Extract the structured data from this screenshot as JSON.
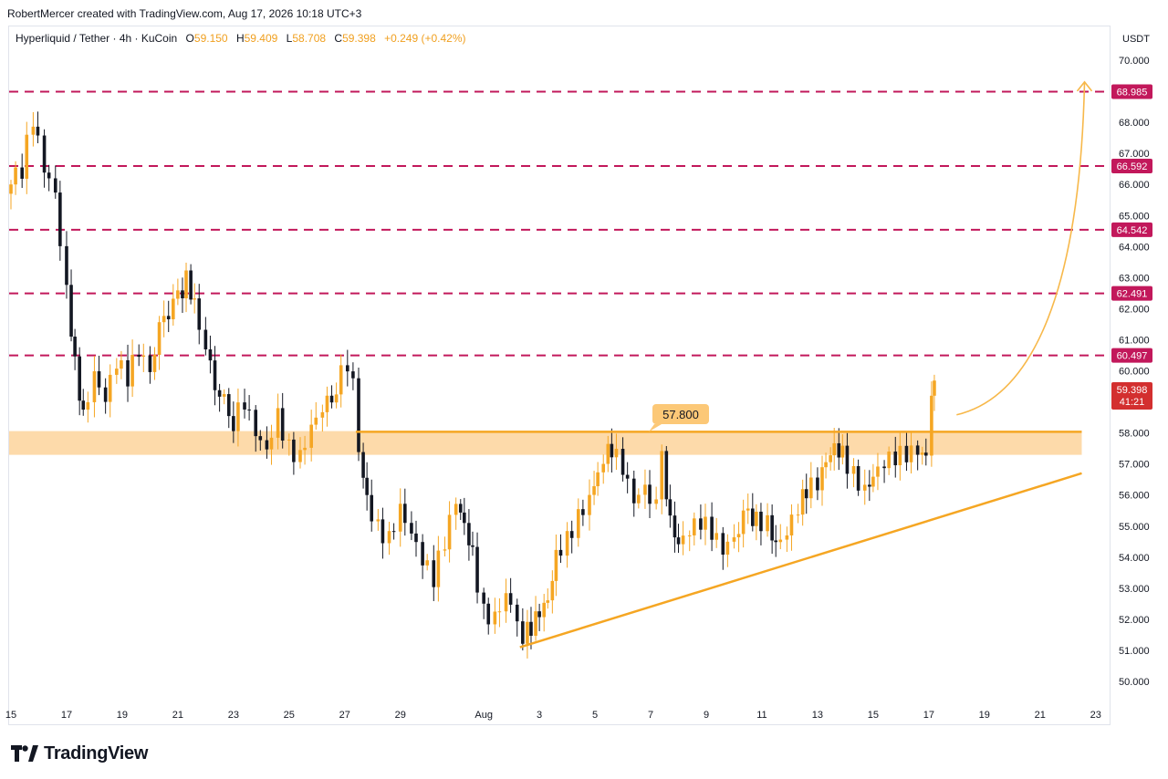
{
  "header": {
    "credit": "RobertMercer created with TradingView.com, Aug 17, 2026 10:18 UTC+3"
  },
  "legend": {
    "symbol": "Hyperliquid / Tether · 4h · KuCoin",
    "o_label": "O",
    "o_value": "59.150",
    "h_label": "H",
    "h_value": "59.409",
    "l_label": "L",
    "l_value": "58.708",
    "c_label": "C",
    "c_value": "59.398",
    "change": "+0.249 (+0.42%)"
  },
  "currency": "USDT",
  "brand": {
    "name": "TradingView"
  },
  "colors": {
    "up": "#f5a623",
    "down": "#131722",
    "resistance": "#c2185b",
    "zone": "#fdd49b",
    "trendline": "#f5a623",
    "axis_text": "#131722"
  },
  "chart_data": {
    "type": "candlestick",
    "title": "Hyperliquid / Tether · 4h · KuCoin",
    "y_axis": {
      "range": [
        49.5,
        70.8
      ],
      "ticks": [
        "50.000",
        "51.000",
        "52.000",
        "53.000",
        "54.000",
        "55.000",
        "56.000",
        "57.000",
        "58.000",
        "59.000",
        "60.000",
        "61.000",
        "62.000",
        "63.000",
        "64.000",
        "65.000",
        "66.000",
        "67.000",
        "68.000",
        "69.000",
        "70.000"
      ]
    },
    "x_axis": {
      "ticks": [
        {
          "label": "15",
          "day": 15
        },
        {
          "label": "17",
          "day": 17
        },
        {
          "label": "19",
          "day": 19
        },
        {
          "label": "21",
          "day": 21
        },
        {
          "label": "23",
          "day": 23
        },
        {
          "label": "25",
          "day": 25
        },
        {
          "label": "27",
          "day": 27
        },
        {
          "label": "29",
          "day": 29
        },
        {
          "label": "Aug",
          "day": 32
        },
        {
          "label": "3",
          "day": 34
        },
        {
          "label": "5",
          "day": 36
        },
        {
          "label": "7",
          "day": 38
        },
        {
          "label": "9",
          "day": 40
        },
        {
          "label": "11",
          "day": 42
        },
        {
          "label": "13",
          "day": 44
        },
        {
          "label": "15",
          "day": 46
        },
        {
          "label": "17",
          "day": 48
        },
        {
          "label": "19",
          "day": 50
        },
        {
          "label": "21",
          "day": 52
        },
        {
          "label": "23",
          "day": 54
        }
      ]
    },
    "resistance_levels": [
      {
        "value": 68.985,
        "label": "68.985"
      },
      {
        "value": 66.592,
        "label": "66.592"
      },
      {
        "value": 64.542,
        "label": "64.542"
      },
      {
        "value": 62.491,
        "label": "62.491"
      },
      {
        "value": 60.497,
        "label": "60.497"
      }
    ],
    "support_zone": {
      "from": 57.5,
      "to": 58.0,
      "start_day": 15,
      "end_day": 53.5
    },
    "breakout_level": {
      "value": 57.8,
      "label": "57.800",
      "start_day": 27.4,
      "end_day": 53.5
    },
    "trendline": {
      "start": {
        "day": 33.3,
        "value": 51.1
      },
      "end": {
        "day": 53.5,
        "value": 56.7
      }
    },
    "projection": {
      "start": {
        "day": 49.0,
        "value": 58.7
      },
      "end": {
        "day": 53.6,
        "value": 69.3
      }
    },
    "last_price": {
      "value": 59.398,
      "label": "59.398",
      "countdown": "41:21"
    },
    "candles_anchor": [
      [
        15.0,
        66.0
      ],
      [
        15.4,
        66.4
      ],
      [
        15.8,
        68.2
      ],
      [
        16.2,
        66.7
      ],
      [
        16.6,
        65.9
      ],
      [
        17.0,
        62.7
      ],
      [
        17.3,
        60.2
      ],
      [
        17.6,
        58.4
      ],
      [
        18.0,
        59.7
      ],
      [
        18.4,
        58.9
      ],
      [
        18.8,
        60.2
      ],
      [
        19.2,
        59.8
      ],
      [
        19.6,
        60.8
      ],
      [
        20.0,
        60.2
      ],
      [
        20.5,
        61.8
      ],
      [
        21.0,
        62.4
      ],
      [
        21.3,
        62.9
      ],
      [
        21.6,
        62.0
      ],
      [
        22.0,
        60.5
      ],
      [
        22.5,
        59.2
      ],
      [
        23.0,
        58.3
      ],
      [
        23.4,
        59.1
      ],
      [
        23.8,
        58.2
      ],
      [
        24.2,
        57.6
      ],
      [
        24.6,
        58.7
      ],
      [
        25.0,
        57.5
      ],
      [
        25.4,
        57.1
      ],
      [
        25.8,
        58.0
      ],
      [
        26.2,
        58.6
      ],
      [
        26.7,
        59.4
      ],
      [
        27.1,
        60.3
      ],
      [
        27.3,
        60.1
      ],
      [
        27.5,
        57.6
      ],
      [
        27.8,
        56.0
      ],
      [
        28.2,
        55.0
      ],
      [
        28.6,
        54.5
      ],
      [
        29.0,
        55.4
      ],
      [
        29.4,
        54.6
      ],
      [
        29.8,
        53.8
      ],
      [
        30.2,
        53.3
      ],
      [
        30.6,
        54.6
      ],
      [
        31.0,
        56.0
      ],
      [
        31.3,
        55.2
      ],
      [
        31.6,
        54.2
      ],
      [
        32.0,
        52.2
      ],
      [
        32.4,
        51.9
      ],
      [
        32.8,
        52.6
      ],
      [
        33.2,
        51.9
      ],
      [
        33.4,
        51.4
      ],
      [
        33.7,
        51.8
      ],
      [
        34.0,
        52.4
      ],
      [
        34.3,
        52.8
      ],
      [
        34.6,
        54.2
      ],
      [
        35.0,
        54.6
      ],
      [
        35.4,
        55.2
      ],
      [
        35.8,
        55.7
      ],
      [
        36.1,
        56.6
      ],
      [
        36.3,
        57.1
      ],
      [
        36.6,
        57.5
      ],
      [
        37.0,
        57.0
      ],
      [
        37.4,
        56.0
      ],
      [
        37.8,
        56.4
      ],
      [
        38.2,
        55.7
      ],
      [
        38.4,
        57.1
      ],
      [
        38.7,
        55.0
      ],
      [
        39.0,
        54.2
      ],
      [
        39.4,
        54.7
      ],
      [
        39.8,
        55.1
      ],
      [
        40.2,
        54.9
      ],
      [
        40.6,
        54.4
      ],
      [
        41.0,
        54.8
      ],
      [
        41.5,
        55.5
      ],
      [
        41.8,
        55.2
      ],
      [
        42.2,
        55.0
      ],
      [
        42.5,
        54.2
      ],
      [
        42.9,
        54.6
      ],
      [
        43.3,
        55.5
      ],
      [
        43.6,
        56.2
      ],
      [
        44.0,
        56.5
      ],
      [
        44.3,
        57.3
      ],
      [
        44.6,
        57.7
      ],
      [
        44.9,
        57.4
      ],
      [
        45.3,
        56.6
      ],
      [
        45.7,
        56.0
      ],
      [
        46.0,
        56.4
      ],
      [
        46.4,
        56.9
      ],
      [
        46.8,
        57.2
      ],
      [
        47.2,
        57.4
      ],
      [
        47.6,
        57.6
      ],
      [
        47.9,
        57.4
      ],
      [
        48.1,
        59.1
      ],
      [
        48.2,
        59.4
      ]
    ]
  }
}
